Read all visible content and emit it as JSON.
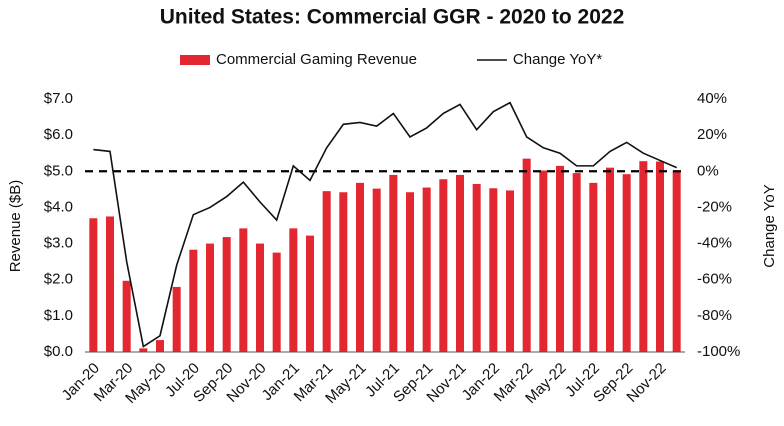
{
  "chart_data": {
    "type": "bar",
    "title": "United States: Commercial GGR - 2020 to 2022",
    "ylabel": "Revenue ($B)",
    "y2label": "Change YoY",
    "categories": [
      "Jan-20",
      null,
      "Mar-20",
      null,
      "May-20",
      null,
      "Jul-20",
      null,
      "Sep-20",
      null,
      "Nov-20",
      null,
      "Jan-21",
      null,
      "Mar-21",
      null,
      "May-21",
      null,
      "Jul-21",
      null,
      "Sep-21",
      null,
      "Nov-21",
      null,
      "Jan-22",
      null,
      "Mar-22",
      null,
      "May-22",
      null,
      "Jul-22",
      null,
      "Sep-22",
      null,
      "Nov-22",
      null
    ],
    "series": [
      {
        "name": "Commercial Gaming Revenue",
        "type": "bar",
        "color": "#e3262f",
        "values": [
          3.7,
          3.75,
          1.97,
          0.1,
          0.33,
          1.8,
          2.83,
          3.0,
          3.18,
          3.42,
          3.0,
          2.75,
          3.42,
          3.22,
          4.45,
          4.42,
          4.68,
          4.52,
          4.9,
          4.42,
          4.55,
          4.78,
          4.9,
          4.65,
          4.53,
          4.47,
          5.35,
          5.02,
          5.15,
          4.95,
          4.68,
          5.1,
          4.92,
          5.28,
          5.27,
          5.02
        ]
      },
      {
        "name": "Change YoY*",
        "type": "line",
        "color": "#111111",
        "axis": "y2",
        "values": [
          12,
          11,
          -50,
          -97,
          -91,
          -52,
          -24,
          -20,
          -14,
          -6,
          -17,
          -27,
          3,
          -5,
          13,
          26,
          27,
          25,
          32,
          19,
          24,
          32,
          37,
          23,
          33,
          38,
          19,
          13,
          10,
          3,
          3,
          11,
          16,
          10,
          6,
          2
        ]
      }
    ],
    "ylim": [
      0,
      7
    ],
    "yticks": [
      {
        "value": 0,
        "label": "$0.0"
      },
      {
        "value": 1,
        "label": "$1.0"
      },
      {
        "value": 2,
        "label": "$2.0"
      },
      {
        "value": 3,
        "label": "$3.0"
      },
      {
        "value": 4,
        "label": "$4.0"
      },
      {
        "value": 5,
        "label": "$5.0"
      },
      {
        "value": 6,
        "label": "$6.0"
      },
      {
        "value": 7,
        "label": "$7.0"
      }
    ],
    "y2lim": [
      -100,
      40
    ],
    "y2ticks": [
      {
        "value": -100,
        "label": "-100%"
      },
      {
        "value": -80,
        "label": "-80%"
      },
      {
        "value": -60,
        "label": "-60%"
      },
      {
        "value": -40,
        "label": "-40%"
      },
      {
        "value": -20,
        "label": "-20%"
      },
      {
        "value": 0,
        "label": "0%"
      },
      {
        "value": 20,
        "label": "20%"
      },
      {
        "value": 40,
        "label": "40%"
      }
    ],
    "reference_line": {
      "value": 0,
      "axis": "y2",
      "style": "dashed"
    },
    "grid": false,
    "legend": "top"
  }
}
